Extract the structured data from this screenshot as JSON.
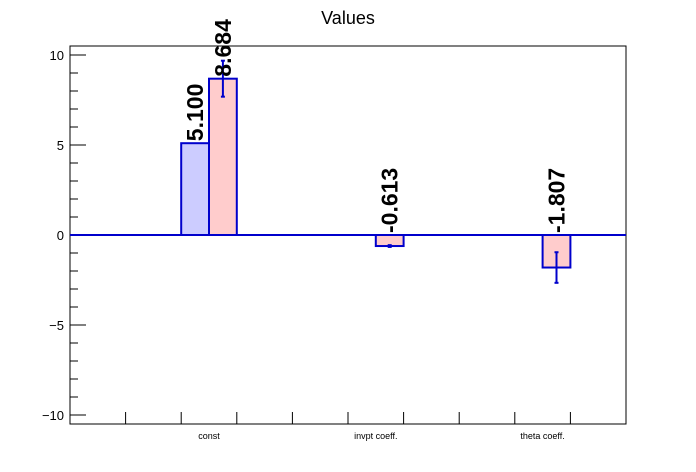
{
  "chart_data": {
    "type": "bar",
    "title": "Values",
    "xlabel": "",
    "ylabel": "",
    "ylim": [
      -10.5,
      10.5
    ],
    "yticks": [
      -10,
      -5,
      0,
      5,
      10
    ],
    "ytick_labels": [
      "−10",
      "−5",
      "0",
      "5",
      "10"
    ],
    "categories": [
      "const",
      "invpt coeff.",
      "theta coeff."
    ],
    "grid": false,
    "legend": "none",
    "series": [
      {
        "values": [
          5.1,
          null,
          null
        ],
        "labels": [
          "5.100",
          "",
          ""
        ],
        "errors": [
          null,
          null,
          null
        ],
        "fill": "#ccccff",
        "stroke": "#0000cc"
      },
      {
        "values": [
          8.684,
          -0.613,
          -1.807
        ],
        "labels": [
          "8.684",
          "-0.613",
          "-1.807"
        ],
        "errors": [
          1.0,
          0.05,
          0.85
        ],
        "fill": "#ffcccc",
        "stroke": "#0000cc"
      }
    ],
    "zero_line_color": "#0000cc",
    "error_bar_color": "#0000cc"
  }
}
